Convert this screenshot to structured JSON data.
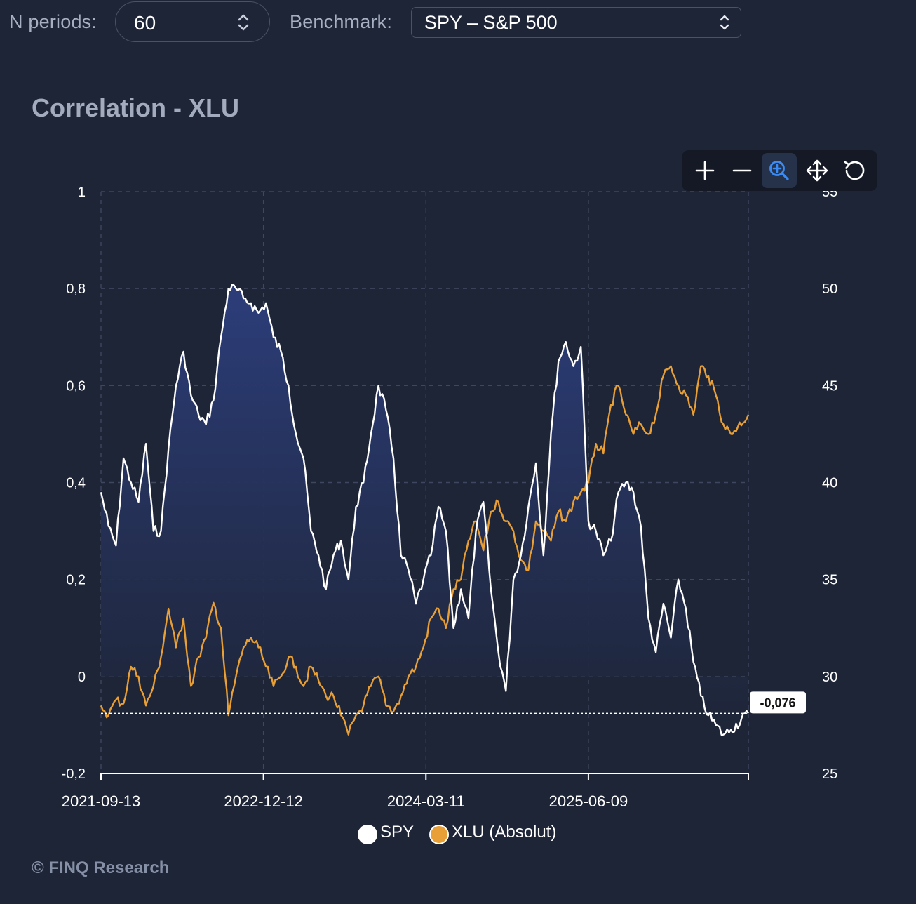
{
  "controls": {
    "periods_label": "N periods:",
    "periods_value": "60",
    "benchmark_label": "Benchmark:",
    "benchmark_value": "SPY – S&P 500"
  },
  "toolbar": {
    "zoom_in": "plus-icon",
    "zoom_out": "minus-icon",
    "zoom_select": "magnifier-plus-icon",
    "pan": "move-icon",
    "reset": "reset-icon",
    "active": "zoom_select"
  },
  "colors": {
    "background": "#1e2537",
    "correlation_line": "#ffffff",
    "correlation_fill": "#2a3a72",
    "price_line": "#e89f36",
    "grid": "#3e4760"
  },
  "footer": "© FINQ Research",
  "chart_data": {
    "type": "line",
    "title": "Correlation - XLU",
    "x_ticks": [
      "2021-09-13",
      "2022-12-12",
      "2024-03-11",
      "2025-06-09"
    ],
    "x_range": [
      "2021-09-13",
      "2026-08-31"
    ],
    "y_left": {
      "range": [
        -0.2,
        1
      ],
      "ticks": [
        "-0,2",
        "0",
        "0,2",
        "0,4",
        "0,6",
        "0,8",
        "1"
      ]
    },
    "y_right": {
      "range": [
        25,
        55
      ],
      "ticks": [
        "25",
        "30",
        "35",
        "40",
        "45",
        "50",
        "55"
      ]
    },
    "grid": true,
    "legend_position": "bottom",
    "last_value_label": "-0,076",
    "last_value": -0.076,
    "series": [
      {
        "name": "SPY",
        "axis": "left",
        "style": "area",
        "points": [
          [
            "2021-09-13",
            0.38
          ],
          [
            "2021-10-04",
            0.31
          ],
          [
            "2021-10-25",
            0.27
          ],
          [
            "2021-11-15",
            0.45
          ],
          [
            "2021-12-06",
            0.4
          ],
          [
            "2021-12-27",
            0.36
          ],
          [
            "2022-01-17",
            0.48
          ],
          [
            "2022-02-07",
            0.3
          ],
          [
            "2022-02-28",
            0.3
          ],
          [
            "2022-03-21",
            0.47
          ],
          [
            "2022-04-11",
            0.6
          ],
          [
            "2022-05-02",
            0.67
          ],
          [
            "2022-05-23",
            0.58
          ],
          [
            "2022-06-13",
            0.54
          ],
          [
            "2022-07-04",
            0.52
          ],
          [
            "2022-07-25",
            0.57
          ],
          [
            "2022-08-15",
            0.7
          ],
          [
            "2022-09-05",
            0.8
          ],
          [
            "2022-09-26",
            0.8
          ],
          [
            "2022-10-17",
            0.78
          ],
          [
            "2022-11-07",
            0.77
          ],
          [
            "2022-11-28",
            0.75
          ],
          [
            "2022-12-19",
            0.77
          ],
          [
            "2023-01-09",
            0.7
          ],
          [
            "2023-01-30",
            0.67
          ],
          [
            "2023-02-20",
            0.6
          ],
          [
            "2023-03-13",
            0.5
          ],
          [
            "2023-04-03",
            0.45
          ],
          [
            "2023-04-24",
            0.3
          ],
          [
            "2023-05-15",
            0.25
          ],
          [
            "2023-06-05",
            0.18
          ],
          [
            "2023-06-26",
            0.25
          ],
          [
            "2023-07-17",
            0.28
          ],
          [
            "2023-08-07",
            0.2
          ],
          [
            "2023-08-28",
            0.35
          ],
          [
            "2023-09-18",
            0.4
          ],
          [
            "2023-10-09",
            0.5
          ],
          [
            "2023-10-30",
            0.6
          ],
          [
            "2023-11-20",
            0.55
          ],
          [
            "2023-12-11",
            0.45
          ],
          [
            "2024-01-01",
            0.25
          ],
          [
            "2024-01-22",
            0.22
          ],
          [
            "2024-02-12",
            0.15
          ],
          [
            "2024-03-04",
            0.2
          ],
          [
            "2024-03-25",
            0.25
          ],
          [
            "2024-04-15",
            0.35
          ],
          [
            "2024-05-06",
            0.3
          ],
          [
            "2024-05-27",
            0.1
          ],
          [
            "2024-06-17",
            0.18
          ],
          [
            "2024-07-08",
            0.12
          ],
          [
            "2024-07-29",
            0.3
          ],
          [
            "2024-08-19",
            0.36
          ],
          [
            "2024-09-09",
            0.18
          ],
          [
            "2024-09-30",
            0.05
          ],
          [
            "2024-10-21",
            -0.03
          ],
          [
            "2024-11-11",
            0.2
          ],
          [
            "2024-12-02",
            0.25
          ],
          [
            "2024-12-23",
            0.35
          ],
          [
            "2025-01-13",
            0.44
          ],
          [
            "2025-02-03",
            0.25
          ],
          [
            "2025-02-24",
            0.5
          ],
          [
            "2025-03-17",
            0.65
          ],
          [
            "2025-04-07",
            0.69
          ],
          [
            "2025-04-28",
            0.64
          ],
          [
            "2025-05-19",
            0.68
          ],
          [
            "2025-06-09",
            0.32
          ],
          [
            "2025-06-30",
            0.3
          ],
          [
            "2025-07-21",
            0.25
          ],
          [
            "2025-08-11",
            0.28
          ],
          [
            "2025-09-01",
            0.38
          ],
          [
            "2025-09-22",
            0.4
          ],
          [
            "2025-10-13",
            0.38
          ],
          [
            "2025-11-03",
            0.31
          ],
          [
            "2025-11-24",
            0.12
          ],
          [
            "2025-12-15",
            0.05
          ],
          [
            "2026-01-05",
            0.15
          ],
          [
            "2026-01-26",
            0.08
          ],
          [
            "2026-02-16",
            0.2
          ],
          [
            "2026-03-09",
            0.14
          ],
          [
            "2026-03-30",
            0.03
          ],
          [
            "2026-04-20",
            -0.04
          ],
          [
            "2026-05-11",
            -0.08
          ],
          [
            "2026-06-01",
            -0.1
          ],
          [
            "2026-06-22",
            -0.12
          ],
          [
            "2026-07-13",
            -0.11
          ],
          [
            "2026-08-31",
            -0.076
          ]
        ]
      },
      {
        "name": "XLU (Absolut)",
        "axis": "right",
        "style": "line",
        "points": [
          [
            "2021-09-13",
            28.5
          ],
          [
            "2021-10-04",
            28.0
          ],
          [
            "2021-10-25",
            28.8
          ],
          [
            "2021-11-15",
            28.6
          ],
          [
            "2021-12-06",
            30.5
          ],
          [
            "2021-12-27",
            30.0
          ],
          [
            "2022-01-17",
            28.5
          ],
          [
            "2022-02-07",
            29.5
          ],
          [
            "2022-02-28",
            31.0
          ],
          [
            "2022-03-21",
            33.5
          ],
          [
            "2022-04-11",
            31.5
          ],
          [
            "2022-05-02",
            33.0
          ],
          [
            "2022-05-23",
            29.5
          ],
          [
            "2022-06-13",
            31.0
          ],
          [
            "2022-07-04",
            32.0
          ],
          [
            "2022-07-25",
            33.8
          ],
          [
            "2022-08-15",
            32.5
          ],
          [
            "2022-09-05",
            28.0
          ],
          [
            "2022-09-26",
            30.0
          ],
          [
            "2022-10-17",
            31.5
          ],
          [
            "2022-11-07",
            32.0
          ],
          [
            "2022-11-28",
            31.5
          ],
          [
            "2022-12-19",
            30.5
          ],
          [
            "2023-01-09",
            29.5
          ],
          [
            "2023-01-30",
            30.0
          ],
          [
            "2023-02-20",
            31.0
          ],
          [
            "2023-03-13",
            30.5
          ],
          [
            "2023-04-03",
            29.5
          ],
          [
            "2023-04-24",
            30.5
          ],
          [
            "2023-05-15",
            29.8
          ],
          [
            "2023-06-05",
            29.0
          ],
          [
            "2023-06-26",
            29.0
          ],
          [
            "2023-07-17",
            28.0
          ],
          [
            "2023-08-07",
            27.0
          ],
          [
            "2023-08-28",
            28.0
          ],
          [
            "2023-09-18",
            28.5
          ],
          [
            "2023-10-09",
            29.5
          ],
          [
            "2023-10-30",
            30.0
          ],
          [
            "2023-11-20",
            28.5
          ],
          [
            "2023-12-11",
            28.2
          ],
          [
            "2024-01-01",
            29.0
          ],
          [
            "2024-01-22",
            30.0
          ],
          [
            "2024-02-12",
            30.5
          ],
          [
            "2024-03-04",
            31.5
          ],
          [
            "2024-03-25",
            33.0
          ],
          [
            "2024-04-15",
            33.5
          ],
          [
            "2024-05-06",
            32.5
          ],
          [
            "2024-05-27",
            34.5
          ],
          [
            "2024-06-17",
            35.0
          ],
          [
            "2024-07-08",
            37.0
          ],
          [
            "2024-07-29",
            38.0
          ],
          [
            "2024-08-19",
            36.5
          ],
          [
            "2024-09-09",
            38.5
          ],
          [
            "2024-09-30",
            39.0
          ],
          [
            "2024-10-21",
            38.0
          ],
          [
            "2024-11-11",
            37.5
          ],
          [
            "2024-12-02",
            36.0
          ],
          [
            "2024-12-23",
            35.5
          ],
          [
            "2025-01-13",
            38.0
          ],
          [
            "2025-02-03",
            37.5
          ],
          [
            "2025-02-24",
            37.0
          ],
          [
            "2025-03-17",
            38.5
          ],
          [
            "2025-04-07",
            38.0
          ],
          [
            "2025-04-28",
            39.0
          ],
          [
            "2025-05-19",
            39.5
          ],
          [
            "2025-06-09",
            40.0
          ],
          [
            "2025-06-30",
            42.0
          ],
          [
            "2025-07-21",
            41.5
          ],
          [
            "2025-08-11",
            44.0
          ],
          [
            "2025-09-01",
            45.0
          ],
          [
            "2025-09-22",
            43.5
          ],
          [
            "2025-10-13",
            42.5
          ],
          [
            "2025-11-03",
            43.0
          ],
          [
            "2025-11-24",
            42.5
          ],
          [
            "2025-12-15",
            43.5
          ],
          [
            "2026-01-05",
            45.5
          ],
          [
            "2026-01-26",
            46.0
          ],
          [
            "2026-02-16",
            45.0
          ],
          [
            "2026-03-09",
            44.5
          ],
          [
            "2026-03-30",
            43.5
          ],
          [
            "2026-04-20",
            46.0
          ],
          [
            "2026-05-11",
            45.5
          ],
          [
            "2026-06-01",
            44.5
          ],
          [
            "2026-06-22",
            43.0
          ],
          [
            "2026-07-13",
            42.5
          ],
          [
            "2026-08-31",
            43.5
          ]
        ]
      }
    ]
  }
}
